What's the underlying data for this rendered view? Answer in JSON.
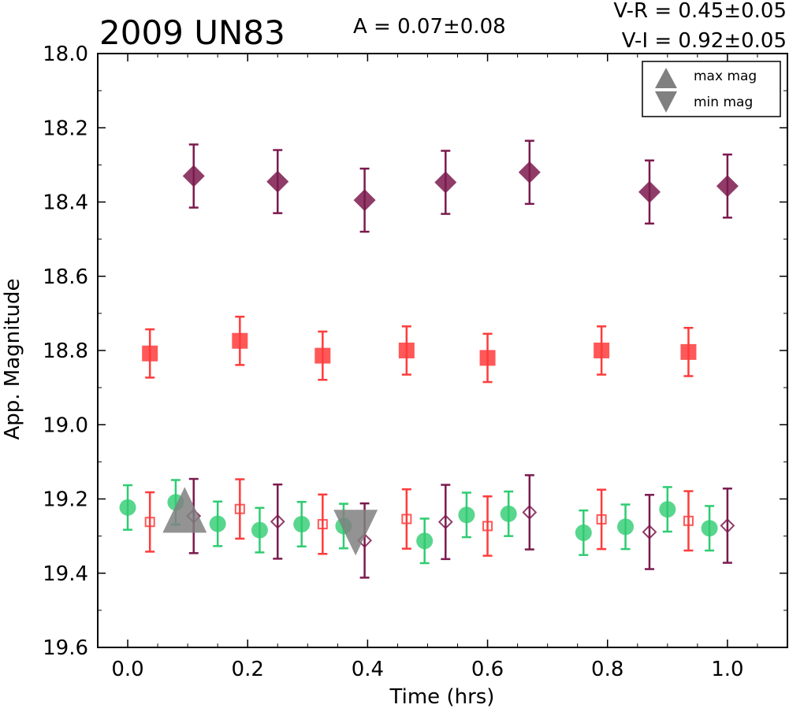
{
  "chart_data": {
    "type": "scatter",
    "title": "2009 UN83",
    "annotations": {
      "amplitude": "A  = 0.07±0.08",
      "color_vr": "V-R = 0.45±0.05",
      "color_vi": "V-I  = 0.92±0.05"
    },
    "xlabel": "Time (hrs)",
    "ylabel": "App. Magnitude",
    "xlim": [
      -0.05,
      1.1
    ],
    "ylim": [
      19.6,
      18.0
    ],
    "y_inverted": true,
    "xticks": [
      "0.0",
      "0.2",
      "0.4",
      "0.6",
      "0.8",
      "1.0"
    ],
    "yticks": [
      "18.0",
      "18.2",
      "18.4",
      "18.6",
      "18.8",
      "19.0",
      "19.2",
      "19.4",
      "19.6"
    ],
    "grid": false,
    "legend": {
      "placement": "top-right",
      "entries": [
        {
          "label": "max mag",
          "marker": "triangle-up",
          "color": "#808080"
        },
        {
          "label": "min mag",
          "marker": "triangle-down",
          "color": "#808080"
        }
      ]
    },
    "series": [
      {
        "marker": "diamond-filled",
        "color": "#7b1a4e",
        "points": [
          {
            "x": 0.11,
            "y": 18.33,
            "err": 0.085
          },
          {
            "x": 0.25,
            "y": 18.345,
            "err": 0.085
          },
          {
            "x": 0.395,
            "y": 18.395,
            "err": 0.085
          },
          {
            "x": 0.53,
            "y": 18.347,
            "err": 0.085
          },
          {
            "x": 0.67,
            "y": 18.32,
            "err": 0.085
          },
          {
            "x": 0.87,
            "y": 18.373,
            "err": 0.085
          },
          {
            "x": 1.0,
            "y": 18.357,
            "err": 0.085
          }
        ]
      },
      {
        "marker": "square-filled",
        "color": "#ff3b3b",
        "points": [
          {
            "x": 0.037,
            "y": 18.808,
            "err": 0.065
          },
          {
            "x": 0.187,
            "y": 18.774,
            "err": 0.065
          },
          {
            "x": 0.325,
            "y": 18.814,
            "err": 0.065
          },
          {
            "x": 0.465,
            "y": 18.8,
            "err": 0.065
          },
          {
            "x": 0.6,
            "y": 18.82,
            "err": 0.065
          },
          {
            "x": 0.79,
            "y": 18.8,
            "err": 0.065
          },
          {
            "x": 0.935,
            "y": 18.804,
            "err": 0.065
          }
        ]
      },
      {
        "marker": "circle-filled",
        "color": "#2ecc71",
        "points": [
          {
            "x": 0.0,
            "y": 19.223,
            "err": 0.06
          },
          {
            "x": 0.08,
            "y": 19.209,
            "err": 0.06
          },
          {
            "x": 0.15,
            "y": 19.267,
            "err": 0.06
          },
          {
            "x": 0.22,
            "y": 19.284,
            "err": 0.06
          },
          {
            "x": 0.29,
            "y": 19.268,
            "err": 0.06
          },
          {
            "x": 0.36,
            "y": 19.273,
            "err": 0.06
          },
          {
            "x": 0.495,
            "y": 19.313,
            "err": 0.06
          },
          {
            "x": 0.565,
            "y": 19.243,
            "err": 0.06
          },
          {
            "x": 0.635,
            "y": 19.24,
            "err": 0.06
          },
          {
            "x": 0.76,
            "y": 19.291,
            "err": 0.06
          },
          {
            "x": 0.83,
            "y": 19.275,
            "err": 0.06
          },
          {
            "x": 0.9,
            "y": 19.228,
            "err": 0.06
          },
          {
            "x": 0.97,
            "y": 19.279,
            "err": 0.06
          }
        ]
      },
      {
        "marker": "square-open",
        "color": "#ff3b3b",
        "points": [
          {
            "x": 0.037,
            "y": 19.262,
            "err": 0.08
          },
          {
            "x": 0.187,
            "y": 19.227,
            "err": 0.08
          },
          {
            "x": 0.325,
            "y": 19.268,
            "err": 0.08
          },
          {
            "x": 0.465,
            "y": 19.254,
            "err": 0.08
          },
          {
            "x": 0.6,
            "y": 19.273,
            "err": 0.08
          },
          {
            "x": 0.79,
            "y": 19.255,
            "err": 0.08
          },
          {
            "x": 0.935,
            "y": 19.259,
            "err": 0.08
          }
        ]
      },
      {
        "marker": "diamond-open",
        "color": "#7b1a4e",
        "points": [
          {
            "x": 0.11,
            "y": 19.246,
            "err": 0.1
          },
          {
            "x": 0.25,
            "y": 19.261,
            "err": 0.1
          },
          {
            "x": 0.395,
            "y": 19.312,
            "err": 0.1
          },
          {
            "x": 0.53,
            "y": 19.262,
            "err": 0.1
          },
          {
            "x": 0.67,
            "y": 19.236,
            "err": 0.1
          },
          {
            "x": 0.87,
            "y": 19.289,
            "err": 0.1
          },
          {
            "x": 1.0,
            "y": 19.272,
            "err": 0.1
          }
        ]
      }
    ],
    "extrema": {
      "max_mag": {
        "x": 0.095,
        "y": 19.24,
        "marker": "triangle-up",
        "color": "#808080"
      },
      "min_mag": {
        "x": 0.38,
        "y": 19.28,
        "marker": "triangle-down",
        "color": "#808080"
      }
    }
  }
}
